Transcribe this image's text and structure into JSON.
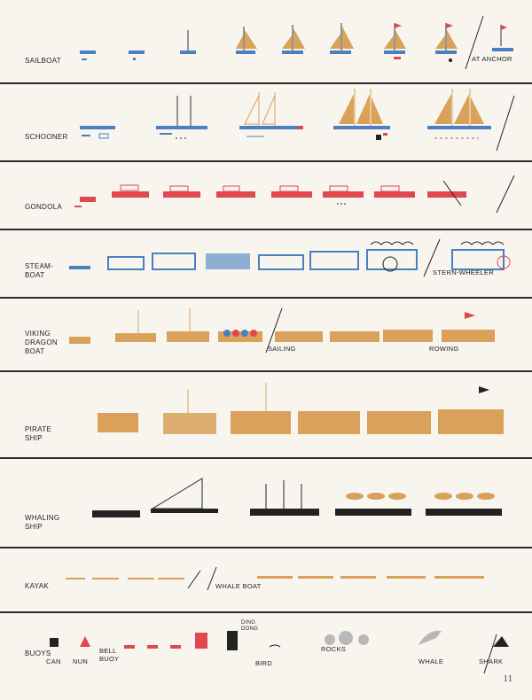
{
  "colors": {
    "blue": "#4a7fc1",
    "red": "#e0474f",
    "orange": "#d9a15a",
    "black": "#222222",
    "grey": "#b8b8b8"
  },
  "rows": [
    {
      "key": "sailboat",
      "label": "SAILBOAT",
      "extra": [
        "AT ANCHOR"
      ]
    },
    {
      "key": "schooner",
      "label": "SCHOONER",
      "extra": []
    },
    {
      "key": "gondola",
      "label": "GONDOLA",
      "extra": []
    },
    {
      "key": "steamboat",
      "label": "STEAM-\nBOAT",
      "extra": [
        "STERN-WHEELER"
      ]
    },
    {
      "key": "viking",
      "label": "VIKING\nDRAGON\nBOAT",
      "extra": [
        "SAILING",
        "ROWING"
      ]
    },
    {
      "key": "pirate",
      "label": "PIRATE\nSHIP",
      "extra": []
    },
    {
      "key": "whaling",
      "label": "WHALING\nSHIP",
      "extra": []
    },
    {
      "key": "kayak",
      "label": "KAYAK",
      "extra": [
        "WHALE BOAT"
      ]
    },
    {
      "key": "misc",
      "label": "BUOYS",
      "extra": [
        "CAN",
        "NUN",
        "BELL\nBUOY",
        "DING\nDONG",
        "BIRD",
        "ROCKS",
        "WHALE",
        "SHARK"
      ]
    }
  ],
  "page_number": "11"
}
